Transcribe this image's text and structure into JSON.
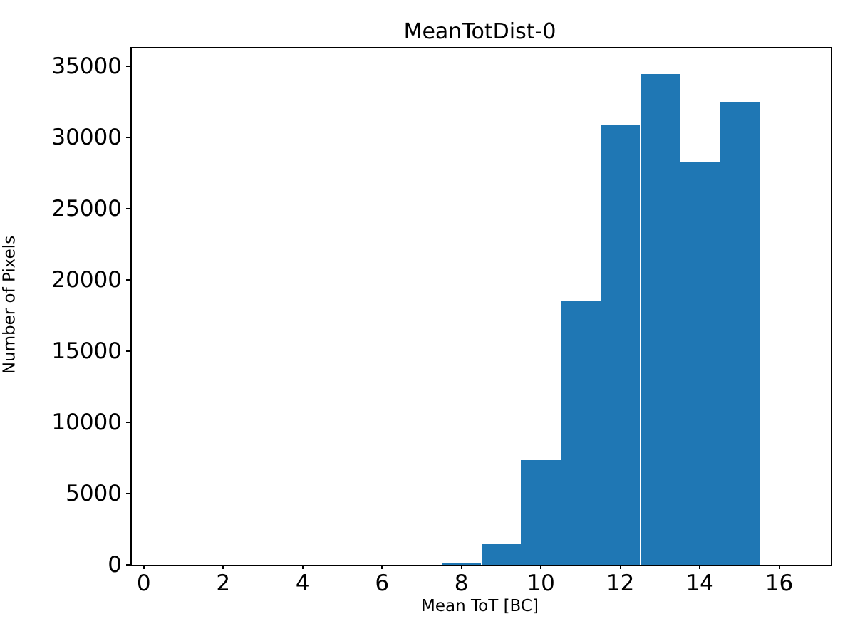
{
  "title": "MeanTotDist-0",
  "chart_data": {
    "type": "bar",
    "subtype": "histogram",
    "title": "MeanTotDist-0",
    "xlabel": "Mean ToT [BC]",
    "ylabel": "Number of Pixels",
    "bin_edges": [
      0.5,
      1.5,
      2.5,
      3.5,
      4.5,
      5.5,
      6.5,
      7.5,
      8.5,
      9.5,
      10.5,
      11.5,
      12.5,
      13.5,
      14.5,
      15.5,
      16.5
    ],
    "counts": [
      0,
      0,
      0,
      0,
      0,
      0,
      0,
      120,
      1450,
      7350,
      18550,
      30850,
      34450,
      28250,
      32500,
      0
    ],
    "xticks": [
      0,
      2,
      4,
      6,
      8,
      10,
      12,
      14,
      16
    ],
    "yticks": [
      0,
      5000,
      10000,
      15000,
      20000,
      25000,
      30000,
      35000
    ],
    "xlim": [
      -0.3,
      17.3
    ],
    "ylim": [
      0,
      36225
    ],
    "bar_color": "#1f77b4",
    "axis_color": "#000000",
    "background_color": "#ffffff",
    "grid": false,
    "legend": null
  }
}
